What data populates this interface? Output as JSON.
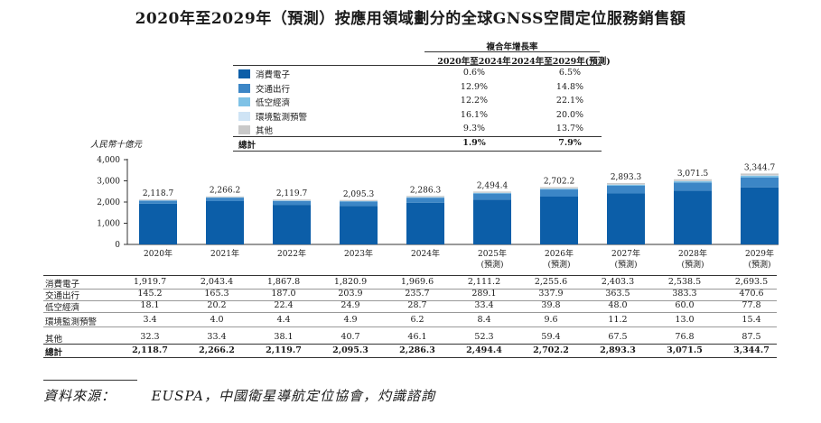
{
  "title": "2020年至2029年（預測）按應用領域劃分的全球GNSS空間定位服務銷售額",
  "legend": {
    "cagr_header": "複合年增長率",
    "period1": "2020年至2024年",
    "period2": "2024年至2029年(預測)",
    "items": [
      {
        "name": "消費電子",
        "cagr1": "0.6%",
        "cagr2": "6.5%",
        "color": "#0c5ea8"
      },
      {
        "name": "交通出行",
        "cagr1": "12.9%",
        "cagr2": "14.8%",
        "color": "#3c86c6"
      },
      {
        "name": "低空經濟",
        "cagr1": "12.2%",
        "cagr2": "22.1%",
        "color": "#7fc2e6"
      },
      {
        "name": "環境監測預警",
        "cagr1": "16.1%",
        "cagr2": "20.0%",
        "color": "#cfe4f5"
      },
      {
        "name": "其他",
        "cagr1": "9.3%",
        "cagr2": "13.7%",
        "color": "#c9c9c9"
      }
    ],
    "total": {
      "name": "總計",
      "cagr1": "1.9%",
      "cagr2": "7.9%"
    }
  },
  "unit_label": "人民幣十億元",
  "chart_data": {
    "type": "bar",
    "stacked": true,
    "title": "2020年至2029年（預測）按應用領域劃分的全球GNSS空間定位服務銷售額",
    "ylabel": "人民幣十億元",
    "ylim": [
      0,
      4000
    ],
    "yticks": [
      "0",
      "1,000",
      "2,000",
      "3,000",
      "4,000"
    ],
    "categories": [
      "2020年",
      "2021年",
      "2022年",
      "2023年",
      "2024年",
      "2025年",
      "2026年",
      "2027年",
      "2028年",
      "2029年"
    ],
    "category_notes": [
      "",
      "",
      "",
      "",
      "",
      "(預測)",
      "(預測)",
      "(預測)",
      "(預測)",
      "(預測)"
    ],
    "series": [
      {
        "name": "消費電子",
        "values": [
          1919.7,
          2043.4,
          1867.8,
          1820.9,
          1969.6,
          2111.2,
          2255.6,
          2403.3,
          2538.5,
          2693.5
        ]
      },
      {
        "name": "交通出行",
        "values": [
          145.2,
          165.3,
          187.0,
          203.9,
          235.7,
          289.1,
          337.9,
          363.5,
          383.3,
          470.6
        ]
      },
      {
        "name": "低空經濟",
        "values": [
          18.1,
          20.2,
          22.4,
          24.9,
          28.7,
          33.4,
          39.8,
          48.0,
          60.0,
          77.8
        ]
      },
      {
        "name": "環境監測預警",
        "values": [
          3.4,
          4.0,
          4.4,
          4.9,
          6.2,
          8.4,
          9.6,
          11.2,
          13.0,
          15.4
        ]
      },
      {
        "name": "其他",
        "values": [
          32.3,
          33.4,
          38.1,
          40.7,
          46.1,
          52.3,
          59.4,
          67.5,
          76.8,
          87.5
        ]
      }
    ],
    "totals": [
      2118.7,
      2266.2,
      2119.7,
      2095.3,
      2286.3,
      2494.4,
      2702.2,
      2893.3,
      3071.5,
      3344.7
    ],
    "total_labels": [
      "2,118.7",
      "2,266.2",
      "2,119.7",
      "2,095.3",
      "2,286.3",
      "2,494.4",
      "2,702.2",
      "2,893.3",
      "3,071.5",
      "3,344.7"
    ]
  },
  "table": {
    "rows": [
      {
        "label": "消費電子",
        "cells": [
          "1,919.7",
          "2,043.4",
          "1,867.8",
          "1,820.9",
          "1,969.6",
          "2,111.2",
          "2,255.6",
          "2,403.3",
          "2,538.5",
          "2,693.5"
        ]
      },
      {
        "label": "交通出行",
        "cells": [
          "145.2",
          "165.3",
          "187.0",
          "203.9",
          "235.7",
          "289.1",
          "337.9",
          "363.5",
          "383.3",
          "470.6"
        ]
      },
      {
        "label": "低空經濟",
        "cells": [
          "18.1",
          "20.2",
          "22.4",
          "24.9",
          "28.7",
          "33.4",
          "39.8",
          "48.0",
          "60.0",
          "77.8"
        ]
      },
      {
        "label": "環境監測預警",
        "cells": [
          "3.4",
          "4.0",
          "4.4",
          "4.9",
          "6.2",
          "8.4",
          "9.6",
          "11.2",
          "13.0",
          "15.4"
        ]
      },
      {
        "label": "其他",
        "cells": [
          "32.3",
          "33.4",
          "38.1",
          "40.7",
          "46.1",
          "52.3",
          "59.4",
          "67.5",
          "76.8",
          "87.5"
        ]
      },
      {
        "label": "總計",
        "cells": [
          "2,118.7",
          "2,266.2",
          "2,119.7",
          "2,095.3",
          "2,286.3",
          "2,494.4",
          "2,702.2",
          "2,893.3",
          "3,071.5",
          "3,344.7"
        ]
      }
    ]
  },
  "source": {
    "label": "資料來源：",
    "text": "EUSPA，中國衛星導航定位協會，灼識諮詢"
  }
}
